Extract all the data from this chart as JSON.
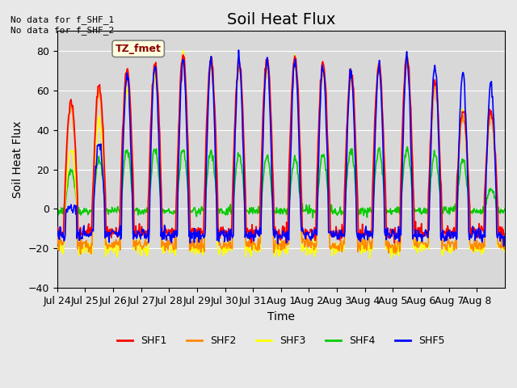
{
  "title": "Soil Heat Flux",
  "ylabel": "Soil Heat Flux",
  "xlabel": "Time",
  "ylim": [
    -40,
    90
  ],
  "yticks": [
    -40,
    -20,
    0,
    20,
    40,
    60,
    80
  ],
  "annotation_text": "No data for f_SHF_1\nNo data for f_SHF_2",
  "tz_label": "TZ_fmet",
  "legend_labels": [
    "SHF1",
    "SHF2",
    "SHF3",
    "SHF4",
    "SHF5"
  ],
  "legend_colors": [
    "#ff0000",
    "#ff8800",
    "#ffff00",
    "#00cc00",
    "#0000ff"
  ],
  "line_width": 1.2,
  "bg_color": "#e8e8e8",
  "plot_bg_color": "#d8d8d8",
  "xticklabels": [
    "Jul 24",
    "Jul 25",
    "Jul 26",
    "Jul 27",
    "Jul 28",
    "Jul 29",
    "Jul 30",
    "Jul 31",
    "Aug 1",
    "Aug 2",
    "Aug 3",
    "Aug 4",
    "Aug 5",
    "Aug 6",
    "Aug 7",
    "Aug 8"
  ],
  "title_fontsize": 14,
  "label_fontsize": 10,
  "tick_fontsize": 9
}
